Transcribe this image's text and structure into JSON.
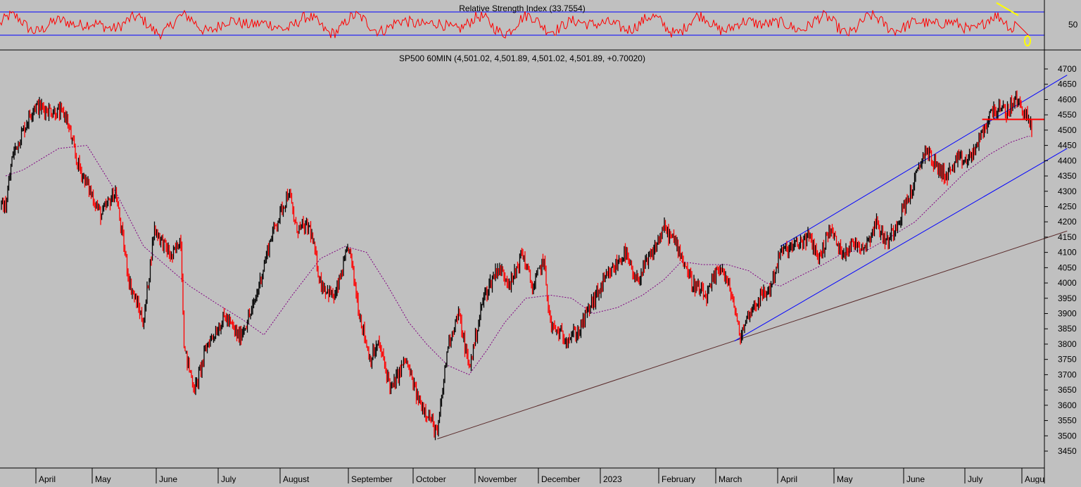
{
  "colors": {
    "background": "#c0c0c0",
    "rsi_line": "#ff0000",
    "rsi_band": "#0000ff",
    "up_bar": "#000000",
    "down_bar": "#ff0000",
    "moving_average": "#800080",
    "channel": "#0000ff",
    "long_trendline": "#5a2a2a",
    "support_line": "#ff0000",
    "highlight": "#ffff00"
  },
  "chart_data": [
    {
      "type": "line",
      "title": "Relative Strength Index (33.7554)",
      "yticks": [
        50
      ],
      "ylim": [
        0,
        100
      ],
      "bands": [
        70,
        30
      ],
      "last_value": 33.7554
    },
    {
      "type": "candlestick",
      "title": "SP500 60MIN (4,501.02, 4,501.89, 4,501.02, 4,501.89, +0.70020)",
      "ylim": [
        3400,
        4720
      ],
      "yticks": [
        3450,
        3500,
        3550,
        3600,
        3650,
        3700,
        3750,
        3800,
        3850,
        3900,
        3950,
        4000,
        4050,
        4100,
        4150,
        4200,
        4250,
        4300,
        4350,
        4400,
        4450,
        4500,
        4550,
        4600,
        4650,
        4700
      ],
      "x_months": [
        "April",
        "May",
        "June",
        "July",
        "August",
        "September",
        "October",
        "November",
        "December",
        "2023",
        "February",
        "March",
        "April",
        "May",
        "June",
        "July",
        "Augu"
      ],
      "key_levels": [
        {
          "t": 0,
          "v": 4250
        },
        {
          "t": 0.2,
          "v": 4420
        },
        {
          "t": 0.8,
          "v": 4580
        },
        {
          "t": 1.7,
          "v": 4550
        },
        {
          "t": 2.0,
          "v": 4400
        },
        {
          "t": 2.7,
          "v": 4220
        },
        {
          "t": 3.1,
          "v": 4300
        },
        {
          "t": 3.5,
          "v": 4000
        },
        {
          "t": 3.9,
          "v": 3870
        },
        {
          "t": 4.2,
          "v": 4180
        },
        {
          "t": 4.7,
          "v": 4080
        },
        {
          "t": 4.95,
          "v": 4150
        },
        {
          "t": 5.05,
          "v": 3780
        },
        {
          "t": 5.35,
          "v": 3650
        },
        {
          "t": 5.7,
          "v": 3800
        },
        {
          "t": 6.2,
          "v": 3890
        },
        {
          "t": 6.6,
          "v": 3820
        },
        {
          "t": 7.0,
          "v": 3920
        },
        {
          "t": 7.5,
          "v": 4150
        },
        {
          "t": 8.0,
          "v": 4300
        },
        {
          "t": 8.2,
          "v": 4180
        },
        {
          "t": 8.6,
          "v": 4180
        },
        {
          "t": 8.9,
          "v": 4000
        },
        {
          "t": 9.3,
          "v": 3950
        },
        {
          "t": 9.7,
          "v": 4120
        },
        {
          "t": 10.0,
          "v": 3900
        },
        {
          "t": 10.3,
          "v": 3750
        },
        {
          "t": 10.55,
          "v": 3800
        },
        {
          "t": 10.9,
          "v": 3650
        },
        {
          "t": 11.3,
          "v": 3750
        },
        {
          "t": 11.65,
          "v": 3620
        },
        {
          "t": 11.95,
          "v": 3570
        },
        {
          "t": 12.2,
          "v": 3500
        },
        {
          "t": 12.5,
          "v": 3800
        },
        {
          "t": 12.8,
          "v": 3900
        },
        {
          "t": 13.1,
          "v": 3720
        },
        {
          "t": 13.5,
          "v": 3950
        },
        {
          "t": 13.9,
          "v": 4050
        },
        {
          "t": 14.3,
          "v": 4000
        },
        {
          "t": 14.6,
          "v": 4100
        },
        {
          "t": 14.9,
          "v": 3980
        },
        {
          "t": 15.2,
          "v": 4080
        },
        {
          "t": 15.4,
          "v": 3860
        },
        {
          "t": 15.8,
          "v": 3820
        },
        {
          "t": 16.2,
          "v": 3840
        },
        {
          "t": 16.5,
          "v": 3920
        },
        {
          "t": 16.9,
          "v": 4000
        },
        {
          "t": 17.2,
          "v": 4050
        },
        {
          "t": 17.5,
          "v": 4100
        },
        {
          "t": 17.8,
          "v": 4000
        },
        {
          "t": 18.3,
          "v": 4100
        },
        {
          "t": 18.6,
          "v": 4180
        },
        {
          "t": 19.0,
          "v": 4120
        },
        {
          "t": 19.4,
          "v": 4000
        },
        {
          "t": 19.8,
          "v": 3950
        },
        {
          "t": 20.2,
          "v": 4060
        },
        {
          "t": 20.55,
          "v": 3950
        },
        {
          "t": 20.75,
          "v": 3820
        },
        {
          "t": 21.0,
          "v": 3900
        },
        {
          "t": 21.3,
          "v": 3950
        },
        {
          "t": 21.6,
          "v": 3980
        },
        {
          "t": 21.9,
          "v": 4100
        },
        {
          "t": 22.3,
          "v": 4120
        },
        {
          "t": 22.7,
          "v": 4150
        },
        {
          "t": 23.0,
          "v": 4080
        },
        {
          "t": 23.3,
          "v": 4180
        },
        {
          "t": 23.6,
          "v": 4100
        },
        {
          "t": 24.0,
          "v": 4130
        },
        {
          "t": 24.3,
          "v": 4120
        },
        {
          "t": 24.6,
          "v": 4200
        },
        {
          "t": 24.9,
          "v": 4130
        },
        {
          "t": 25.2,
          "v": 4200
        },
        {
          "t": 25.6,
          "v": 4300
        },
        {
          "t": 26.0,
          "v": 4440
        },
        {
          "t": 26.3,
          "v": 4380
        },
        {
          "t": 26.6,
          "v": 4350
        },
        {
          "t": 26.9,
          "v": 4400
        },
        {
          "t": 27.2,
          "v": 4400
        },
        {
          "t": 27.5,
          "v": 4460
        },
        {
          "t": 27.9,
          "v": 4570
        },
        {
          "t": 28.3,
          "v": 4560
        },
        {
          "t": 28.55,
          "v": 4600
        },
        {
          "t": 28.8,
          "v": 4560
        },
        {
          "t": 29.0,
          "v": 4500
        }
      ],
      "moving_average": [
        {
          "t": 0,
          "v": 4350
        },
        {
          "t": 0.5,
          "v": 4370
        },
        {
          "t": 1.5,
          "v": 4440
        },
        {
          "t": 2.3,
          "v": 4450
        },
        {
          "t": 3.1,
          "v": 4300
        },
        {
          "t": 3.9,
          "v": 4120
        },
        {
          "t": 4.6,
          "v": 4050
        },
        {
          "t": 5.2,
          "v": 3990
        },
        {
          "t": 6.0,
          "v": 3930
        },
        {
          "t": 6.7,
          "v": 3880
        },
        {
          "t": 7.3,
          "v": 3830
        },
        {
          "t": 8.1,
          "v": 3960
        },
        {
          "t": 8.9,
          "v": 4080
        },
        {
          "t": 9.6,
          "v": 4120
        },
        {
          "t": 10.2,
          "v": 4100
        },
        {
          "t": 10.8,
          "v": 3990
        },
        {
          "t": 11.4,
          "v": 3870
        },
        {
          "t": 11.9,
          "v": 3800
        },
        {
          "t": 12.5,
          "v": 3730
        },
        {
          "t": 13.1,
          "v": 3700
        },
        {
          "t": 13.6,
          "v": 3780
        },
        {
          "t": 14.1,
          "v": 3870
        },
        {
          "t": 14.7,
          "v": 3950
        },
        {
          "t": 15.4,
          "v": 3960
        },
        {
          "t": 16.0,
          "v": 3950
        },
        {
          "t": 16.6,
          "v": 3900
        },
        {
          "t": 17.3,
          "v": 3920
        },
        {
          "t": 18.0,
          "v": 3960
        },
        {
          "t": 18.6,
          "v": 4010
        },
        {
          "t": 19.1,
          "v": 4070
        },
        {
          "t": 19.7,
          "v": 4060
        },
        {
          "t": 20.4,
          "v": 4060
        },
        {
          "t": 21.0,
          "v": 4040
        },
        {
          "t": 21.5,
          "v": 4000
        },
        {
          "t": 21.9,
          "v": 3990
        },
        {
          "t": 22.4,
          "v": 4020
        },
        {
          "t": 23.1,
          "v": 4060
        },
        {
          "t": 23.7,
          "v": 4100
        },
        {
          "t": 24.4,
          "v": 4110
        },
        {
          "t": 25.0,
          "v": 4150
        },
        {
          "t": 25.7,
          "v": 4200
        },
        {
          "t": 26.4,
          "v": 4280
        },
        {
          "t": 27.1,
          "v": 4360
        },
        {
          "t": 27.8,
          "v": 4420
        },
        {
          "t": 28.4,
          "v": 4460
        },
        {
          "t": 28.9,
          "v": 4480
        },
        {
          "t": 29.0,
          "v": 4480
        }
      ],
      "trendlines": [
        {
          "name": "long-trendline",
          "from": {
            "t": 12.2,
            "v": 3490
          },
          "to": {
            "t": 30.0,
            "v": 4170
          }
        },
        {
          "name": "channel-upper",
          "from": {
            "t": 21.9,
            "v": 4120
          },
          "to": {
            "t": 30.0,
            "v": 4680
          }
        },
        {
          "name": "channel-lower",
          "from": {
            "t": 20.6,
            "v": 3810
          },
          "to": {
            "t": 30.0,
            "v": 4440
          }
        }
      ],
      "support_level": 4535
    }
  ]
}
